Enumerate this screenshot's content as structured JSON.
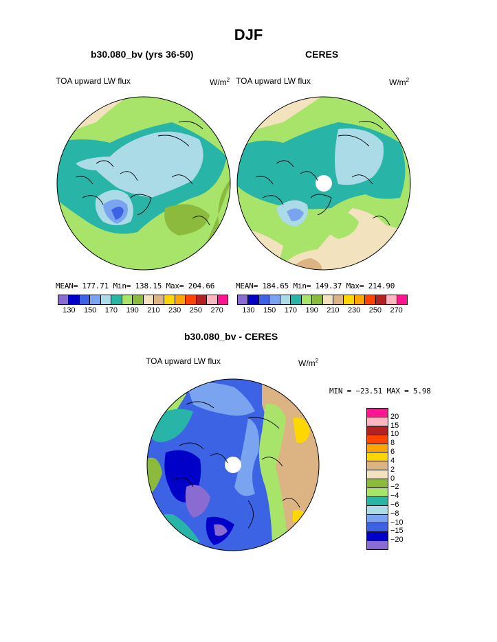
{
  "title": "DJF",
  "colors": [
    "#8a6bd1",
    "#0000c8",
    "#3b63e4",
    "#7aa3f0",
    "#aadbe6",
    "#28b4a6",
    "#a8e46a",
    "#8cba3c",
    "#f2e2be",
    "#dcb484",
    "#ffd700",
    "#ffa500",
    "#ff4500",
    "#b22222",
    "#ffb6c1",
    "#ff1493"
  ],
  "diff_colors": [
    "#8a6bd1",
    "#0000c8",
    "#3b63e4",
    "#7aa3f0",
    "#aadbe6",
    "#28b4a6",
    "#a8e46a",
    "#8cba3c",
    "#f2e2be",
    "#dcb484",
    "#ffd700",
    "#ffa500",
    "#ff4500",
    "#b22222",
    "#ffb6c1",
    "#ff1493"
  ],
  "panels": [
    {
      "title": "b30.080_bv (yrs 36-50)",
      "variable": "TOA upward LW flux",
      "units": "W/m",
      "units_sup": "2",
      "stats": "MEAN= 177.71  Min= 138.15  Max= 204.66",
      "ticks": [
        "130",
        "150",
        "170",
        "190",
        "210",
        "230",
        "250",
        "270"
      ]
    },
    {
      "title": "CERES",
      "variable": "TOA upward LW flux",
      "units": "W/m",
      "units_sup": "2",
      "stats": "MEAN= 184.65  Min= 149.37  Max= 214.90",
      "ticks": [
        "130",
        "150",
        "170",
        "190",
        "210",
        "230",
        "250",
        "270"
      ]
    }
  ],
  "diff_panel": {
    "title": "b30.080_bv - CERES",
    "variable": "TOA upward LW flux",
    "units": "W/m",
    "units_sup": "2",
    "stats": "MIN = −23.51  MAX =    5.98",
    "ticks": [
      "20",
      "15",
      "10",
      "8",
      "6",
      "4",
      "2",
      "0",
      "−2",
      "−4",
      "−6",
      "−8",
      "−10",
      "−15",
      "−20"
    ]
  }
}
